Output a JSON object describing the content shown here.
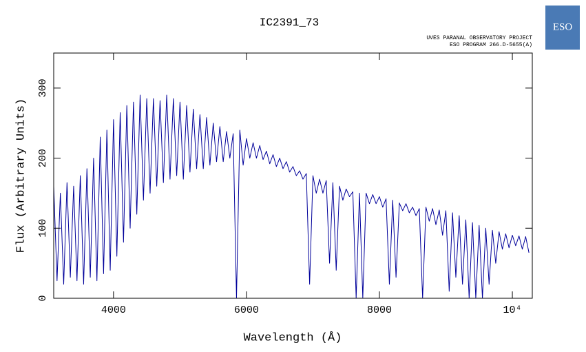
{
  "chart_data": {
    "type": "line",
    "title": "IC2391_73",
    "subtitle": [
      "UVES PARANAL OBSERVATORY PROJECT",
      "ESO PROGRAM 266.D-5655(A)"
    ],
    "logo": "ESO",
    "x_label": "Wavelength (Å)",
    "y_label": "Flux (Arbitrary Units)",
    "xlim": [
      3100,
      10300
    ],
    "ylim": [
      0,
      350
    ],
    "xticks": [
      4000,
      6000,
      8000,
      {
        "value": 10000,
        "label": "10⁴"
      }
    ],
    "yticks": [
      0,
      100,
      200,
      300
    ],
    "x": [
      3100,
      3150,
      3200,
      3250,
      3300,
      3350,
      3400,
      3450,
      3500,
      3550,
      3600,
      3650,
      3700,
      3750,
      3800,
      3850,
      3900,
      3950,
      4000,
      4050,
      4100,
      4150,
      4200,
      4250,
      4300,
      4350,
      4400,
      4450,
      4500,
      4550,
      4600,
      4650,
      4700,
      4750,
      4800,
      4850,
      4900,
      4950,
      5000,
      5050,
      5100,
      5150,
      5200,
      5250,
      5300,
      5350,
      5400,
      5450,
      5500,
      5550,
      5600,
      5650,
      5700,
      5750,
      5800,
      5850,
      5900,
      5950,
      6000,
      6050,
      6100,
      6150,
      6200,
      6250,
      6300,
      6350,
      6400,
      6450,
      6500,
      6550,
      6600,
      6650,
      6700,
      6750,
      6800,
      6850,
      6900,
      6950,
      7000,
      7050,
      7100,
      7150,
      7200,
      7250,
      7300,
      7350,
      7400,
      7450,
      7500,
      7550,
      7600,
      7650,
      7700,
      7750,
      7800,
      7850,
      7900,
      7950,
      8000,
      8050,
      8100,
      8150,
      8200,
      8250,
      8300,
      8350,
      8400,
      8450,
      8500,
      8550,
      8600,
      8650,
      8700,
      8750,
      8800,
      8850,
      8900,
      8950,
      9000,
      9050,
      9100,
      9150,
      9200,
      9250,
      9300,
      9350,
      9400,
      9450,
      9500,
      9550,
      9600,
      9650,
      9700,
      9750,
      9800,
      9850,
      9900,
      9950,
      10000,
      10050,
      10100,
      10150,
      10200,
      10250
    ],
    "series": [
      {
        "name": "IC2391_73",
        "color": "#00009a",
        "values": [
          160,
          25,
          150,
          20,
          165,
          30,
          160,
          25,
          175,
          20,
          185,
          30,
          200,
          25,
          230,
          35,
          240,
          40,
          255,
          60,
          265,
          80,
          275,
          100,
          280,
          120,
          290,
          140,
          285,
          150,
          285,
          160,
          282,
          165,
          290,
          170,
          285,
          175,
          280,
          170,
          275,
          180,
          270,
          185,
          262,
          185,
          258,
          190,
          250,
          195,
          245,
          195,
          238,
          200,
          235,
          0,
          240,
          190,
          228,
          200,
          222,
          200,
          218,
          198,
          210,
          192,
          205,
          188,
          200,
          185,
          195,
          180,
          188,
          175,
          182,
          170,
          178,
          20,
          175,
          150,
          170,
          150,
          168,
          50,
          165,
          40,
          160,
          140,
          156,
          145,
          152,
          0,
          150,
          0,
          150,
          135,
          148,
          135,
          145,
          130,
          142,
          20,
          140,
          30,
          136,
          125,
          135,
          122,
          130,
          118,
          128,
          0,
          130,
          110,
          128,
          105,
          126,
          90,
          125,
          10,
          122,
          30,
          118,
          20,
          112,
          0,
          108,
          0,
          104,
          0,
          100,
          20,
          97,
          50,
          95,
          70,
          92,
          72,
          90,
          75,
          89,
          70,
          88,
          65
        ]
      }
    ]
  }
}
